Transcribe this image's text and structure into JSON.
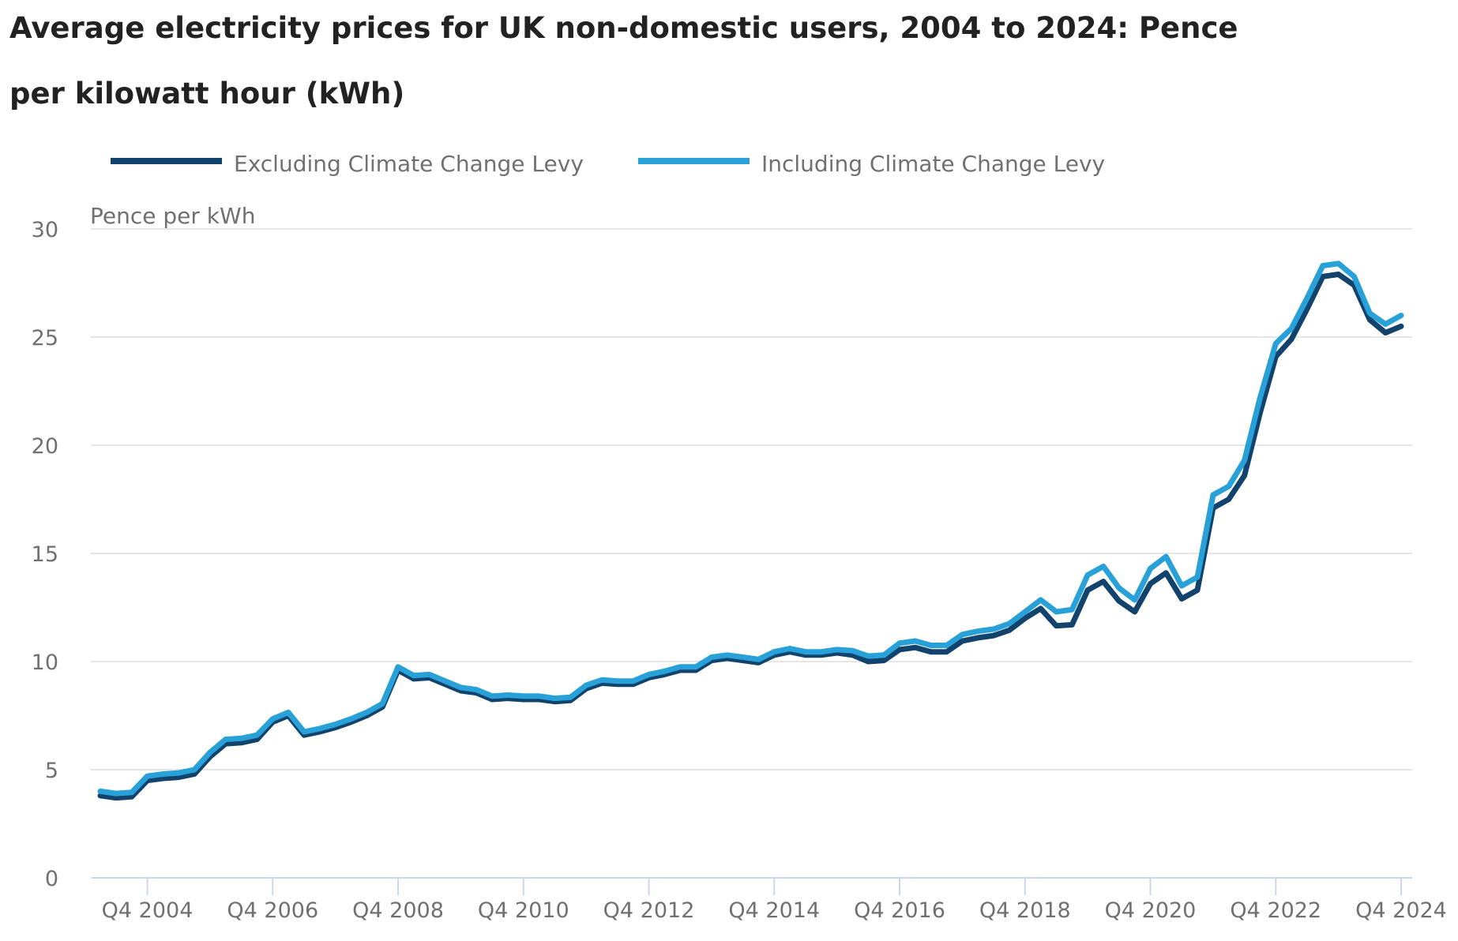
{
  "chart_data": {
    "type": "line",
    "title": "Average electricity prices for UK non-domestic users, 2004 to 2024: Pence per kilowatt hour (kWh)",
    "ylabel": "Pence per kWh",
    "xlabel": "",
    "ylim": [
      0,
      30
    ],
    "y_ticks": [
      0,
      5,
      10,
      15,
      20,
      25,
      30
    ],
    "x_ticks": [
      {
        "index": 3,
        "label": "Q4 2004"
      },
      {
        "index": 11,
        "label": "Q4 2006"
      },
      {
        "index": 19,
        "label": "Q4 2008"
      },
      {
        "index": 27,
        "label": "Q4 2010"
      },
      {
        "index": 35,
        "label": "Q4 2012"
      },
      {
        "index": 43,
        "label": "Q4 2014"
      },
      {
        "index": 51,
        "label": "Q4 2016"
      },
      {
        "index": 59,
        "label": "Q4 2018"
      },
      {
        "index": 67,
        "label": "Q4 2020"
      },
      {
        "index": 75,
        "label": "Q4 2022"
      },
      {
        "index": 83,
        "label": "Q4 2024"
      }
    ],
    "grid": true,
    "legend_position": "top-left",
    "x": [
      "Q1 2004",
      "Q2 2004",
      "Q3 2004",
      "Q4 2004",
      "Q1 2005",
      "Q2 2005",
      "Q3 2005",
      "Q4 2005",
      "Q1 2006",
      "Q2 2006",
      "Q3 2006",
      "Q4 2006",
      "Q1 2007",
      "Q2 2007",
      "Q3 2007",
      "Q4 2007",
      "Q1 2008",
      "Q2 2008",
      "Q3 2008",
      "Q4 2008",
      "Q1 2009",
      "Q2 2009",
      "Q3 2009",
      "Q4 2009",
      "Q1 2010",
      "Q2 2010",
      "Q3 2010",
      "Q4 2010",
      "Q1 2011",
      "Q2 2011",
      "Q3 2011",
      "Q4 2011",
      "Q1 2012",
      "Q2 2012",
      "Q3 2012",
      "Q4 2012",
      "Q1 2013",
      "Q2 2013",
      "Q3 2013",
      "Q4 2013",
      "Q1 2014",
      "Q2 2014",
      "Q3 2014",
      "Q4 2014",
      "Q1 2015",
      "Q2 2015",
      "Q3 2015",
      "Q4 2015",
      "Q1 2016",
      "Q2 2016",
      "Q3 2016",
      "Q4 2016",
      "Q1 2017",
      "Q2 2017",
      "Q3 2017",
      "Q4 2017",
      "Q1 2018",
      "Q2 2018",
      "Q3 2018",
      "Q4 2018",
      "Q1 2019",
      "Q2 2019",
      "Q3 2019",
      "Q4 2019",
      "Q1 2020",
      "Q2 2020",
      "Q3 2020",
      "Q4 2020",
      "Q1 2021",
      "Q2 2021",
      "Q3 2021",
      "Q4 2021",
      "Q1 2022",
      "Q2 2022",
      "Q3 2022",
      "Q4 2022",
      "Q1 2023",
      "Q2 2023",
      "Q3 2023",
      "Q4 2023",
      "Q1 2024",
      "Q2 2024",
      "Q3 2024",
      "Q4 2024"
    ],
    "series": [
      {
        "name": "Excluding Climate Change Levy",
        "color": "#12436d",
        "values": [
          3.8,
          3.7,
          3.75,
          4.5,
          4.6,
          4.65,
          4.8,
          5.6,
          6.2,
          6.25,
          6.4,
          7.2,
          7.5,
          6.6,
          6.75,
          6.95,
          7.2,
          7.5,
          7.9,
          9.6,
          9.2,
          9.25,
          8.95,
          8.65,
          8.55,
          8.25,
          8.3,
          8.25,
          8.25,
          8.15,
          8.2,
          8.75,
          9.0,
          8.95,
          8.95,
          9.25,
          9.4,
          9.6,
          9.6,
          10.05,
          10.15,
          10.05,
          9.95,
          10.3,
          10.45,
          10.3,
          10.3,
          10.4,
          10.3,
          10.0,
          10.05,
          10.55,
          10.65,
          10.45,
          10.45,
          10.95,
          11.1,
          11.2,
          11.45,
          12.0,
          12.45,
          11.65,
          11.7,
          13.3,
          13.7,
          12.8,
          12.3,
          13.6,
          14.1,
          12.9,
          13.3,
          17.1,
          17.5,
          18.6,
          21.5,
          24.1,
          24.9,
          26.3,
          27.8,
          27.9,
          27.4,
          25.8,
          25.2,
          25.5
        ]
      },
      {
        "name": "Including Climate Change Levy",
        "color": "#28a0d8",
        "values": [
          4.0,
          3.9,
          3.95,
          4.7,
          4.8,
          4.85,
          5.0,
          5.8,
          6.4,
          6.45,
          6.6,
          7.35,
          7.65,
          6.75,
          6.9,
          7.1,
          7.35,
          7.65,
          8.05,
          9.75,
          9.35,
          9.4,
          9.1,
          8.8,
          8.7,
          8.4,
          8.45,
          8.4,
          8.4,
          8.3,
          8.35,
          8.9,
          9.15,
          9.1,
          9.1,
          9.4,
          9.55,
          9.75,
          9.75,
          10.2,
          10.3,
          10.2,
          10.1,
          10.45,
          10.6,
          10.45,
          10.45,
          10.55,
          10.5,
          10.25,
          10.3,
          10.85,
          10.95,
          10.75,
          10.75,
          11.25,
          11.4,
          11.5,
          11.75,
          12.3,
          12.85,
          12.3,
          12.4,
          14.0,
          14.4,
          13.4,
          12.85,
          14.3,
          14.85,
          13.5,
          13.9,
          17.7,
          18.1,
          19.3,
          22.2,
          24.7,
          25.4,
          26.8,
          28.3,
          28.4,
          27.8,
          26.1,
          25.6,
          26.0
        ]
      }
    ]
  }
}
